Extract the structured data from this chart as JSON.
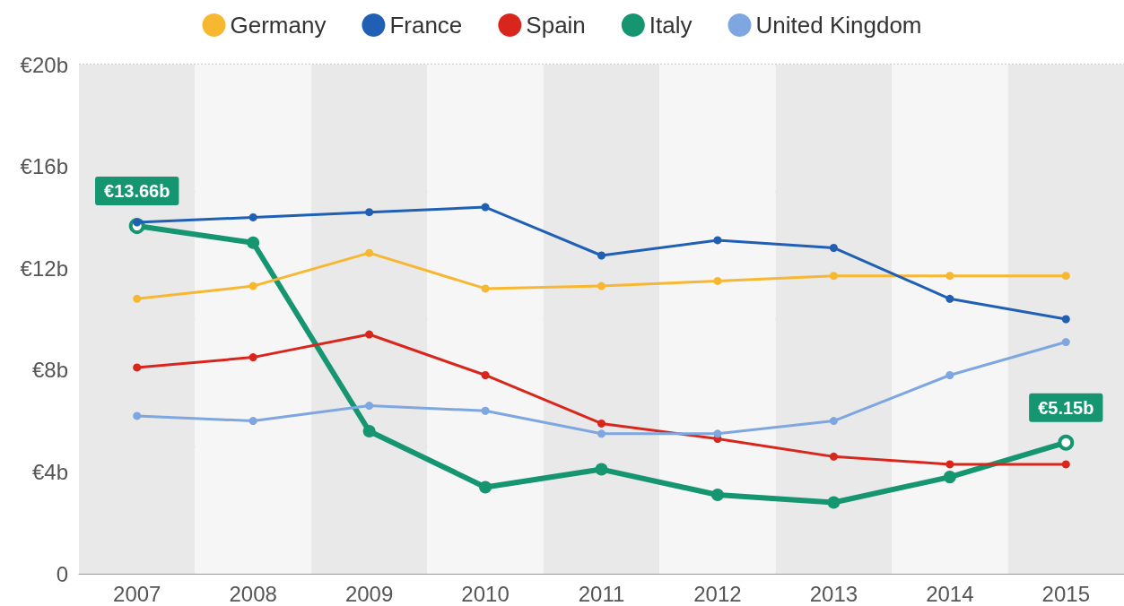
{
  "chart_data": {
    "type": "line",
    "categories": [
      "2007",
      "2008",
      "2009",
      "2010",
      "2011",
      "2012",
      "2013",
      "2014",
      "2015"
    ],
    "series": [
      {
        "name": "Germany",
        "color": "#f7b731",
        "values": [
          10.8,
          11.3,
          12.6,
          11.2,
          11.3,
          11.5,
          11.7,
          11.7,
          11.7
        ]
      },
      {
        "name": "France",
        "color": "#1f5fb4",
        "values": [
          13.8,
          14.0,
          14.2,
          14.4,
          12.5,
          13.1,
          12.8,
          10.8,
          10.0
        ]
      },
      {
        "name": "Spain",
        "color": "#d9261c",
        "values": [
          8.1,
          8.5,
          9.4,
          7.8,
          5.9,
          5.3,
          4.6,
          4.3,
          4.3
        ]
      },
      {
        "name": "Italy",
        "color": "#159570",
        "values": [
          13.66,
          13.0,
          5.6,
          3.4,
          4.1,
          3.1,
          2.8,
          3.8,
          5.15
        ]
      },
      {
        "name": "United Kingdom",
        "color": "#7ea6e0",
        "values": [
          6.2,
          6.0,
          6.6,
          6.4,
          5.5,
          5.5,
          6.0,
          7.8,
          9.1
        ]
      }
    ],
    "ylim": [
      0,
      20
    ],
    "yticks": [
      0,
      {
        "value": 4,
        "label": "€4b"
      },
      {
        "value": 8,
        "label": "€8b"
      },
      {
        "value": 12,
        "label": "€12b"
      },
      {
        "value": 16,
        "label": "€16b"
      },
      {
        "value": 20,
        "label": "€20b"
      }
    ],
    "grid": "y",
    "legend": "top",
    "marker": "circle",
    "line_style": "solid",
    "annotations": [
      {
        "text": "€13.66b",
        "x": "2007",
        "y": 13.66
      },
      {
        "text": "€5.15b",
        "x": "2015",
        "y": 5.15
      }
    ]
  }
}
